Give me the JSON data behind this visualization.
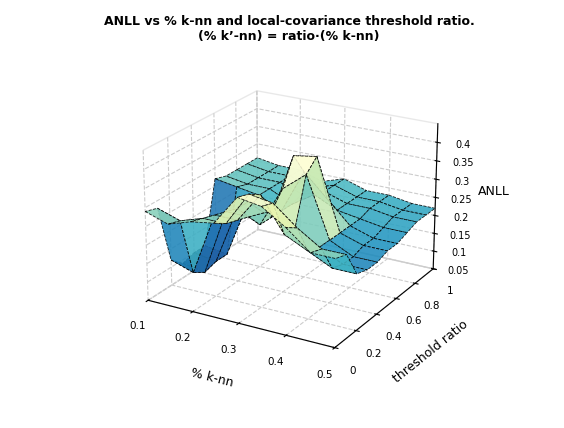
{
  "title_line1": "ANLL vs % k-nn and local-covariance threshold ratio.",
  "title_line2": "(% k’-nn) = ratio·(% k-nn)",
  "xlabel": "% k-nn",
  "ylabel": "threshold ratio",
  "zlabel": "ANLL",
  "x_ticks": [
    0.1,
    0.2,
    0.3,
    0.4,
    0.5
  ],
  "y_ticks": [
    0,
    0.2,
    0.4,
    0.6,
    0.8,
    1.0
  ],
  "z_ticks": [
    0.05,
    0.1,
    0.15,
    0.2,
    0.25,
    0.3,
    0.35,
    0.4
  ],
  "zlim": [
    0.05,
    0.45
  ],
  "x_values": [
    0.1,
    0.15,
    0.2,
    0.25,
    0.3,
    0.35,
    0.4,
    0.45,
    0.5
  ],
  "y_values": [
    0.0,
    0.1,
    0.2,
    0.3,
    0.4,
    0.5,
    0.6,
    0.7,
    0.8,
    0.9,
    1.0
  ],
  "Z": [
    [
      0.28,
      0.28,
      0.28,
      0.28,
      0.28,
      0.28,
      0.28,
      0.28,
      0.28,
      0.28,
      0.28
    ],
    [
      0.27,
      0.27,
      0.27,
      0.27,
      0.27,
      0.27,
      0.27,
      0.27,
      0.27,
      0.27,
      0.27
    ],
    [
      0.1,
      0.1,
      0.28,
      0.28,
      0.26,
      0.25,
      0.26,
      0.26,
      0.26,
      0.26,
      0.26
    ],
    [
      0.27,
      0.09,
      0.28,
      0.3,
      0.24,
      0.24,
      0.24,
      0.24,
      0.24,
      0.25,
      0.25
    ],
    [
      0.37,
      0.37,
      0.37,
      0.3,
      0.35,
      0.42,
      0.35,
      0.28,
      0.28,
      0.27,
      0.27
    ],
    [
      0.36,
      0.36,
      0.25,
      0.25,
      0.32,
      0.4,
      0.3,
      0.24,
      0.24,
      0.23,
      0.23
    ],
    [
      0.33,
      0.33,
      0.22,
      0.22,
      0.22,
      0.22,
      0.22,
      0.22,
      0.23,
      0.23,
      0.23
    ],
    [
      0.3,
      0.3,
      0.2,
      0.2,
      0.2,
      0.2,
      0.2,
      0.2,
      0.22,
      0.22,
      0.22
    ],
    [
      0.28,
      0.28,
      0.2,
      0.2,
      0.2,
      0.2,
      0.2,
      0.2,
      0.22,
      0.22,
      0.22
    ]
  ],
  "colormap": "YlGnBu_r",
  "alpha": 0.88,
  "elev": 22,
  "azim": -60
}
